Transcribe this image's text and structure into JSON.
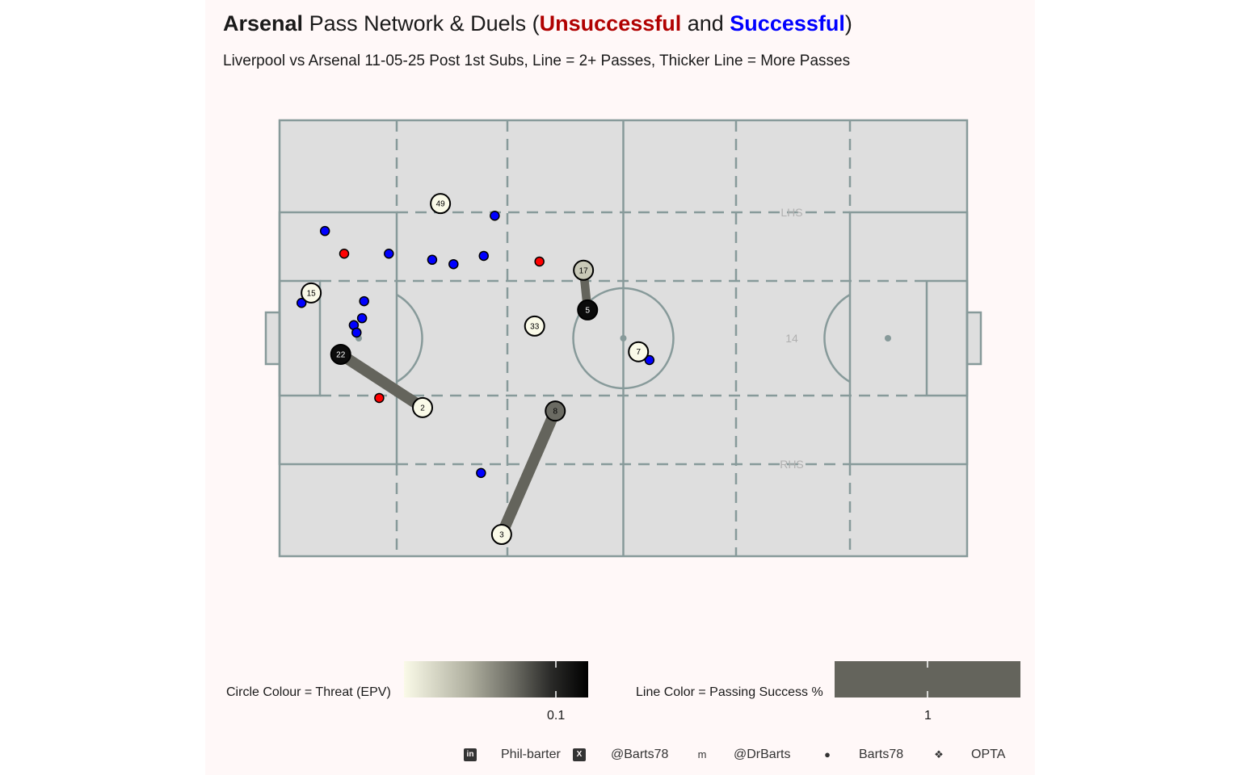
{
  "title": {
    "team": "Arsenal",
    "mid": " Pass Network & Duels (",
    "unsuccessful": "Unsuccessful",
    "and": " and ",
    "successful": "Successful",
    "close": ")"
  },
  "subtitle": "Liverpool vs Arsenal 11-05-25 Post 1st Subs, Line = 2+ Passes, Thicker Line = More Passes",
  "colors": {
    "unsuccessful": "#b00000",
    "successful": "#0000ff",
    "duel_unsuccessful": "#ff0000",
    "duel_successful": "#0000ff",
    "pitch": "#dedede",
    "pitch_lines": "#879a9a",
    "pass_line": "#64645c",
    "background": "#fff8f8"
  },
  "chart_data": {
    "type": "scatter",
    "coordinate_system": "Opta pitch 0-100 x 0-100",
    "zones": [
      {
        "label": "LHS",
        "x": 74.5,
        "y": 78.9
      },
      {
        "label": "14",
        "x": 74.5,
        "y": 50
      },
      {
        "label": "RHS",
        "x": 74.5,
        "y": 21.1
      }
    ],
    "players": [
      {
        "number": "49",
        "x": 23.4,
        "y": 80.9,
        "epv": 0.0
      },
      {
        "number": "15",
        "x": 4.6,
        "y": 60.4,
        "epv": 0.0
      },
      {
        "number": "22",
        "x": 8.9,
        "y": 46.3,
        "epv": 0.12
      },
      {
        "number": "2",
        "x": 20.8,
        "y": 34.1,
        "epv": 0.0
      },
      {
        "number": "33",
        "x": 37.1,
        "y": 52.8,
        "epv": 0.0
      },
      {
        "number": "17",
        "x": 44.2,
        "y": 65.6,
        "epv": 0.02
      },
      {
        "number": "5",
        "x": 44.8,
        "y": 56.5,
        "epv": 0.12
      },
      {
        "number": "7",
        "x": 52.2,
        "y": 46.9,
        "epv": 0.0
      },
      {
        "number": "8",
        "x": 40.1,
        "y": 33.3,
        "epv": 0.06
      },
      {
        "number": "3",
        "x": 32.3,
        "y": 5.0,
        "epv": 0.0
      }
    ],
    "passes": [
      {
        "from": "22",
        "to": "2",
        "count": 3,
        "success": 1
      },
      {
        "from": "8",
        "to": "3",
        "count": 3,
        "success": 1
      },
      {
        "from": "17",
        "to": "5",
        "count": 2,
        "success": 1
      }
    ],
    "duels": [
      {
        "x": 6.6,
        "y": 74.6,
        "outcome": "successful"
      },
      {
        "x": 15.9,
        "y": 69.4,
        "outcome": "successful"
      },
      {
        "x": 22.2,
        "y": 68.0,
        "outcome": "successful"
      },
      {
        "x": 25.3,
        "y": 67.0,
        "outcome": "successful"
      },
      {
        "x": 29.7,
        "y": 68.9,
        "outcome": "successful"
      },
      {
        "x": 31.3,
        "y": 78.1,
        "outcome": "successful"
      },
      {
        "x": 3.2,
        "y": 58.1,
        "outcome": "successful"
      },
      {
        "x": 12.3,
        "y": 58.5,
        "outcome": "successful"
      },
      {
        "x": 12.0,
        "y": 54.6,
        "outcome": "successful"
      },
      {
        "x": 10.8,
        "y": 53.0,
        "outcome": "successful"
      },
      {
        "x": 11.2,
        "y": 51.3,
        "outcome": "successful"
      },
      {
        "x": 29.3,
        "y": 19.1,
        "outcome": "successful"
      },
      {
        "x": 53.8,
        "y": 45.0,
        "outcome": "successful"
      },
      {
        "x": 9.4,
        "y": 69.4,
        "outcome": "unsuccessful"
      },
      {
        "x": 37.8,
        "y": 67.6,
        "outcome": "unsuccessful"
      },
      {
        "x": 14.5,
        "y": 36.3,
        "outcome": "unsuccessful"
      }
    ],
    "legend": {
      "circle_label": "Circle Colour = Threat (EPV)",
      "circle_range": [
        0,
        0.121
      ],
      "circle_colors": [
        "#fafae8",
        "#000000"
      ],
      "circle_tick": "0.1",
      "line_label": "Line Color = Passing Success %",
      "line_tick": "1",
      "placement": "bottom"
    }
  },
  "footer": [
    {
      "icon": "linkedin-icon",
      "glyph": "in",
      "text": "Phil-barter"
    },
    {
      "icon": "x-icon",
      "glyph": "X",
      "text": "@Barts78"
    },
    {
      "icon": "mastodon-icon",
      "glyph": "m",
      "text": "@DrBarts"
    },
    {
      "icon": "github-icon",
      "glyph": "●",
      "text": "Barts78"
    },
    {
      "icon": "dropbox-icon",
      "glyph": "❖",
      "text": "OPTA"
    }
  ]
}
